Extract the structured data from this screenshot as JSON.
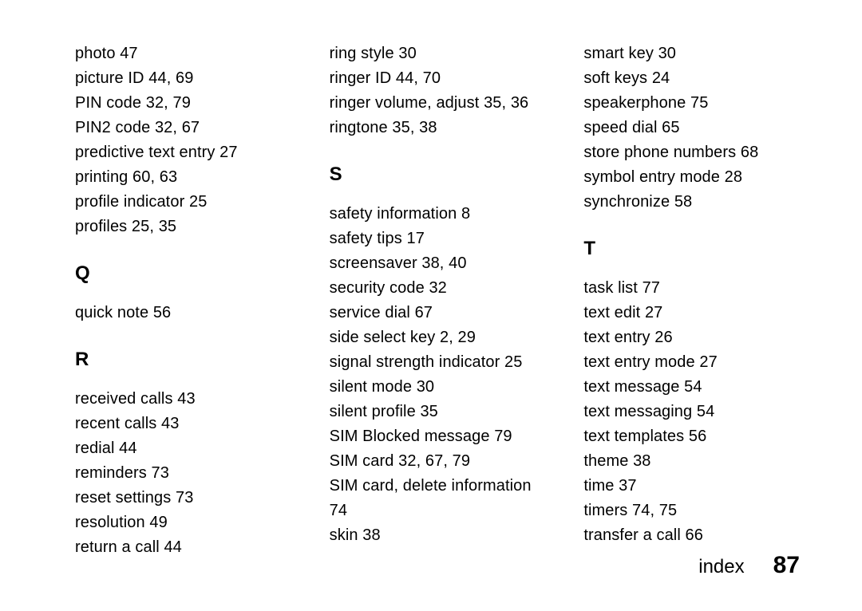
{
  "footer": {
    "label": "index",
    "page": "87"
  },
  "columns": [
    {
      "blocks": [
        {
          "type": "entries",
          "lines": [
            "photo 47",
            "picture ID 44, 69",
            "PIN code 32, 79",
            "PIN2 code 32, 67",
            "predictive text entry 27",
            "printing 60, 63",
            "profile indicator 25",
            "profiles 25, 35"
          ]
        },
        {
          "type": "heading",
          "text": "Q"
        },
        {
          "type": "entries",
          "lines": [
            "quick note 56"
          ]
        },
        {
          "type": "heading",
          "text": "R"
        },
        {
          "type": "entries",
          "lines": [
            "received calls 43",
            "recent calls 43",
            "redial 44",
            "reminders 73",
            "reset settings 73",
            "resolution 49",
            "return a call 44"
          ]
        }
      ]
    },
    {
      "blocks": [
        {
          "type": "entries",
          "lines": [
            "ring style 30",
            "ringer ID 44, 70",
            "ringer volume, adjust 35, 36",
            "ringtone 35, 38"
          ]
        },
        {
          "type": "heading",
          "text": "S"
        },
        {
          "type": "entries",
          "lines": [
            "safety information 8",
            "safety tips 17",
            "screensaver 38, 40",
            "security code 32",
            "service dial 67",
            "side select key 2, 29",
            "signal strength indicator 25",
            "silent mode 30",
            "silent profile 35",
            "SIM Blocked message 79",
            "SIM card 32, 67, 79",
            "SIM card, delete information 74",
            "skin 38"
          ]
        }
      ]
    },
    {
      "blocks": [
        {
          "type": "entries",
          "lines": [
            "smart key 30",
            "soft keys 24",
            "speakerphone 75",
            "speed dial 65",
            "store phone numbers 68",
            "symbol entry mode 28",
            "synchronize 58"
          ]
        },
        {
          "type": "heading",
          "text": "T"
        },
        {
          "type": "entries",
          "lines": [
            "task list 77",
            "text edit 27",
            "text entry 26",
            "text entry mode 27",
            "text message 54",
            "text messaging 54",
            "text templates 56",
            "theme 38",
            "time 37",
            "timers 74, 75",
            "transfer a call 66"
          ]
        }
      ]
    }
  ]
}
